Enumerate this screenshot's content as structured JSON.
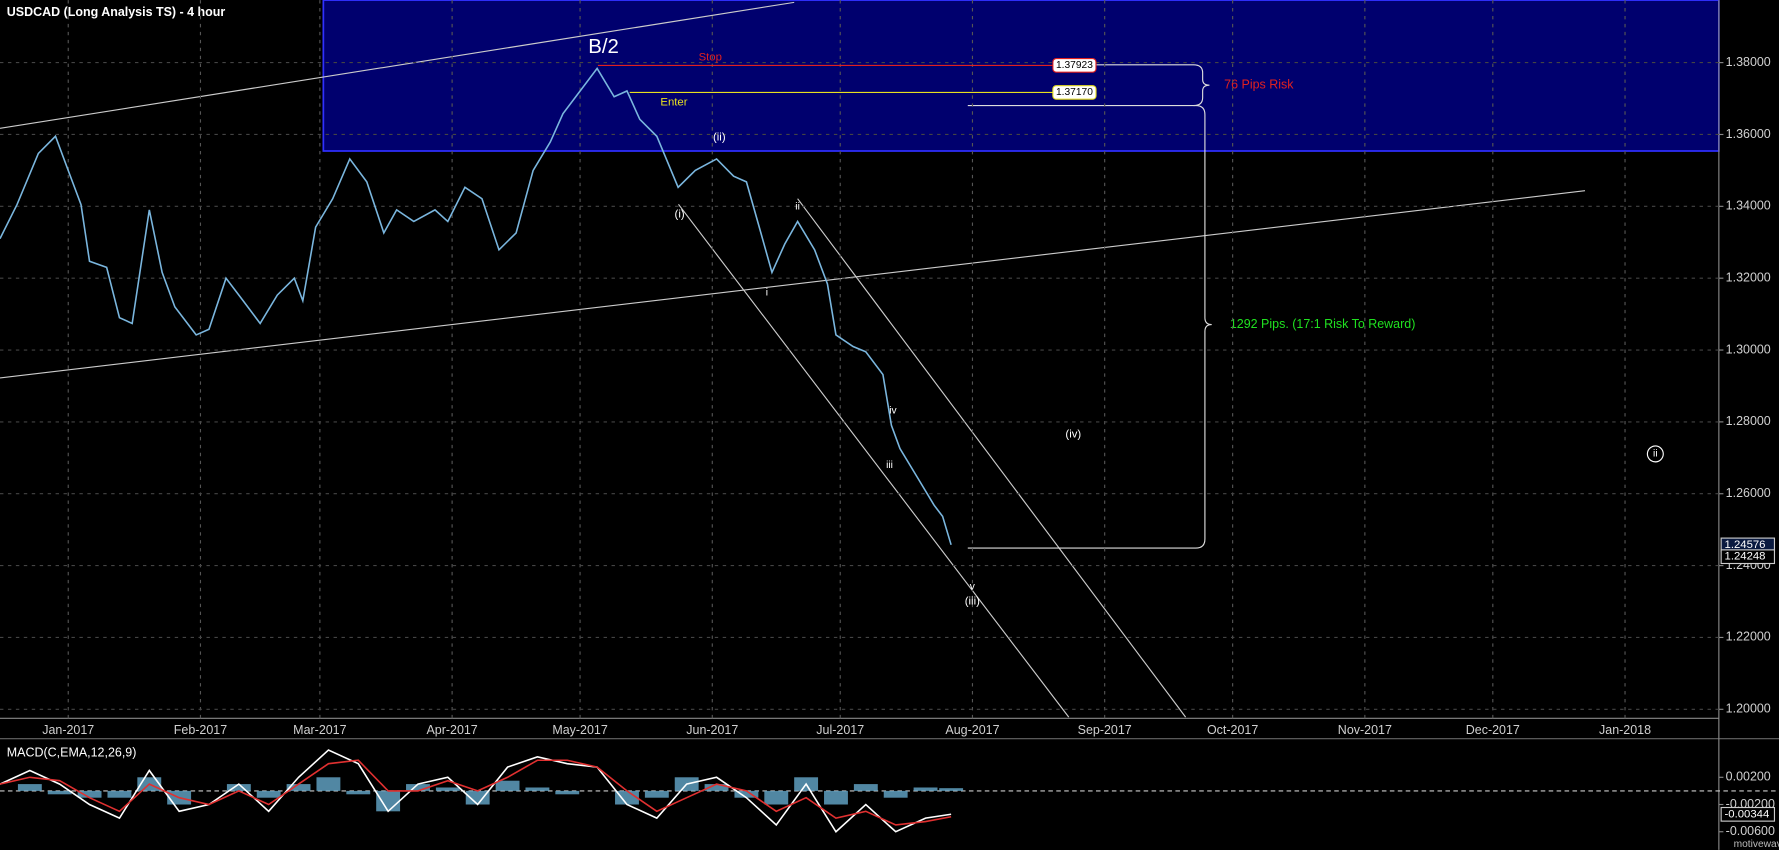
{
  "chart_data": [
    {
      "type": "line",
      "title": "USDCAD (Long  Analysis TS) - 4 hour",
      "x": [
        -16,
        -12,
        -7,
        -3,
        0,
        3,
        5,
        9,
        12,
        15,
        19,
        22,
        25,
        30,
        33,
        37,
        41,
        45,
        49,
        53,
        55,
        58,
        62,
        66,
        70,
        74,
        77,
        81,
        86,
        89,
        93,
        97,
        101,
        105,
        109,
        113,
        116,
        120,
        124,
        128,
        131,
        134,
        138,
        143,
        147,
        152,
        156,
        159,
        162,
        165,
        168,
        171,
        175,
        178,
        180,
        184,
        187,
        191,
        193,
        195,
        199,
        203,
        205,
        207
      ],
      "series": [
        {
          "color": "#7ab6de",
          "values": [
            1.331,
            1.3405,
            1.3547,
            1.3595,
            1.35,
            1.3405,
            1.3247,
            1.323,
            1.309,
            1.3074,
            1.339,
            1.3216,
            1.312,
            1.3042,
            1.3058,
            1.32,
            1.3137,
            1.3074,
            1.3153,
            1.32,
            1.3137,
            1.3342,
            1.3421,
            1.3532,
            1.3468,
            1.3326,
            1.339,
            1.3358,
            1.339,
            1.3358,
            1.3453,
            1.3421,
            1.3279,
            1.3326,
            1.35,
            1.3579,
            1.3658,
            1.3721,
            1.3784,
            1.3705,
            1.3721,
            1.3642,
            1.3595,
            1.3453,
            1.35,
            1.3532,
            1.3484,
            1.3468,
            1.3342,
            1.3216,
            1.3295,
            1.3358,
            1.3279,
            1.3184,
            1.3042,
            1.301,
            1.2995,
            1.2932,
            1.279,
            1.2726,
            1.2647,
            1.2568,
            1.2537,
            1.2458
          ]
        }
      ],
      "xlim": [
        -16,
        387
      ],
      "xticks": [
        {
          "value": 0,
          "label": "Jan-2017"
        },
        {
          "value": 31,
          "label": "Feb-2017"
        },
        {
          "value": 59,
          "label": "Mar-2017"
        },
        {
          "value": 90,
          "label": "Apr-2017"
        },
        {
          "value": 120,
          "label": "May-2017"
        },
        {
          "value": 151,
          "label": "Jun-2017"
        },
        {
          "value": 181,
          "label": "Jul-2017"
        },
        {
          "value": 212,
          "label": "Aug-2017"
        },
        {
          "value": 243,
          "label": "Sep-2017"
        },
        {
          "value": 273,
          "label": "Oct-2017"
        },
        {
          "value": 304,
          "label": "Nov-2017"
        },
        {
          "value": 334,
          "label": "Dec-2017"
        },
        {
          "value": 365,
          "label": "Jan-2018"
        }
      ],
      "ylim": [
        1.1975,
        1.3974
      ],
      "yticks": [
        {
          "value": 1.2,
          "label": "1.20000"
        },
        {
          "value": 1.22,
          "label": "1.22000"
        },
        {
          "value": 1.24,
          "label": "1.24000"
        },
        {
          "value": 1.26,
          "label": "1.26000"
        },
        {
          "value": 1.28,
          "label": "1.28000"
        },
        {
          "value": 1.3,
          "label": "1.30000"
        },
        {
          "value": 1.32,
          "label": "1.32000"
        },
        {
          "value": 1.34,
          "label": "1.34000"
        },
        {
          "value": 1.36,
          "label": "1.36000"
        },
        {
          "value": 1.38,
          "label": "1.38000"
        }
      ],
      "grid": true,
      "levels": [
        {
          "label": "Stop",
          "value": 1.37923,
          "value_label": "1.37923",
          "color": "#e02020"
        },
        {
          "label": "Enter",
          "value": 1.3717,
          "value_label": "1.37170",
          "color": "#e8e020"
        }
      ],
      "price_tags": [
        {
          "value": 1.24576,
          "label": "1.24576"
        },
        {
          "value": 1.24248,
          "label": "1.24248"
        }
      ],
      "annotations": {
        "risk": "76 Pips Risk",
        "reward": "1292 Pips. (17:1 Risk To Reward)",
        "waves": [
          "B/2",
          "(i)",
          "(ii)",
          "i",
          "ii",
          "iii",
          "iv",
          "v",
          "(iii)",
          "(iv)",
          "ii"
        ]
      }
    },
    {
      "type": "macd",
      "title": "MACD(C,EMA,12,26,9)",
      "x": [
        -16,
        -9,
        -2,
        5,
        12,
        19,
        26,
        33,
        40,
        47,
        54,
        61,
        68,
        75,
        82,
        89,
        96,
        103,
        110,
        117,
        124,
        131,
        138,
        145,
        152,
        159,
        166,
        173,
        180,
        187,
        194,
        201,
        207
      ],
      "series": [
        {
          "type": "histogram",
          "color": "#5f9fbf",
          "values": [
            0,
            0.001,
            -0.0005,
            -0.001,
            -0.001,
            0.002,
            -0.002,
            0,
            0.001,
            -0.001,
            0.001,
            0.002,
            -0.0005,
            -0.003,
            0.001,
            0.0005,
            -0.002,
            0.0015,
            0.0005,
            -0.0005,
            0,
            -0.002,
            -0.001,
            0.002,
            0.001,
            -0.001,
            -0.002,
            0.002,
            -0.002,
            0.001,
            -0.001,
            0.0005,
            0.0004
          ]
        },
        {
          "type": "line",
          "color": "#ffffff",
          "values": [
            0.001,
            0.003,
            0.001,
            -0.002,
            -0.004,
            0.003,
            -0.003,
            -0.002,
            0.001,
            -0.003,
            0.002,
            0.006,
            0.004,
            -0.003,
            0.001,
            0.002,
            -0.002,
            0.0035,
            0.005,
            0.004,
            0.0035,
            -0.002,
            -0.004,
            0.001,
            0.002,
            -0.001,
            -0.005,
            0.001,
            -0.006,
            -0.002,
            -0.006,
            -0.004,
            -0.00344
          ]
        },
        {
          "type": "line",
          "color": "#e03030",
          "values": [
            0.001,
            0.002,
            0.0015,
            -0.001,
            -0.003,
            0.001,
            -0.001,
            -0.002,
            0,
            -0.002,
            0.001,
            0.004,
            0.0045,
            0,
            0,
            0.0015,
            0,
            0.002,
            0.0045,
            0.0045,
            0.0035,
            0,
            -0.003,
            -0.001,
            0.001,
            0,
            -0.003,
            -0.001,
            -0.004,
            -0.003,
            -0.005,
            -0.0045,
            -0.0038
          ]
        }
      ],
      "xlim": [
        -16,
        387
      ],
      "ylim": [
        -0.008,
        0.0075
      ],
      "yticks": [
        {
          "value": 0.002,
          "label": "0.00200"
        },
        {
          "value": -0.002,
          "label": "-0.00200"
        },
        {
          "value": -0.006,
          "label": "-0.00600"
        }
      ],
      "price_tags": [
        {
          "value": -0.00344,
          "label": "-0.00344"
        }
      ]
    }
  ],
  "watermark": "motivewave.com"
}
